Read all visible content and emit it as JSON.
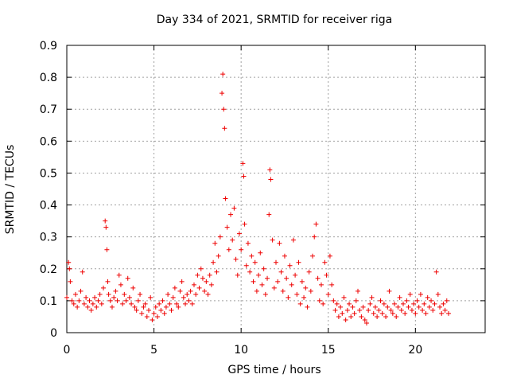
{
  "chart_data": {
    "type": "scatter",
    "title": "Day 334 of 2021, SRMTID for receiver riga",
    "xlabel": "GPS time / hours",
    "ylabel": "SRMTID / TECUs",
    "xlim": [
      0,
      24
    ],
    "ylim": [
      0,
      0.9
    ],
    "xticks": [
      0,
      5,
      10,
      15,
      20
    ],
    "yticks": [
      0,
      0.1,
      0.2,
      0.3,
      0.4,
      0.5,
      0.6,
      0.7,
      0.8,
      0.9
    ],
    "grid": true,
    "marker": "+",
    "color": "#ee0000",
    "series": [
      {
        "name": "riga",
        "points": [
          [
            0.0,
            0.11
          ],
          [
            0.1,
            0.22
          ],
          [
            0.15,
            0.2
          ],
          [
            0.2,
            0.16
          ],
          [
            0.3,
            0.1
          ],
          [
            0.4,
            0.09
          ],
          [
            0.5,
            0.12
          ],
          [
            0.6,
            0.08
          ],
          [
            0.7,
            0.1
          ],
          [
            0.8,
            0.13
          ],
          [
            0.9,
            0.19
          ],
          [
            1.0,
            0.09
          ],
          [
            1.1,
            0.11
          ],
          [
            1.2,
            0.08
          ],
          [
            1.3,
            0.1
          ],
          [
            1.4,
            0.07
          ],
          [
            1.5,
            0.09
          ],
          [
            1.6,
            0.11
          ],
          [
            1.7,
            0.08
          ],
          [
            1.8,
            0.1
          ],
          [
            1.9,
            0.12
          ],
          [
            2.0,
            0.09
          ],
          [
            2.1,
            0.14
          ],
          [
            2.2,
            0.35
          ],
          [
            2.25,
            0.33
          ],
          [
            2.3,
            0.26
          ],
          [
            2.35,
            0.16
          ],
          [
            2.4,
            0.12
          ],
          [
            2.5,
            0.1
          ],
          [
            2.6,
            0.08
          ],
          [
            2.7,
            0.11
          ],
          [
            2.8,
            0.13
          ],
          [
            2.9,
            0.1
          ],
          [
            3.0,
            0.18
          ],
          [
            3.1,
            0.15
          ],
          [
            3.2,
            0.09
          ],
          [
            3.3,
            0.12
          ],
          [
            3.4,
            0.1
          ],
          [
            3.5,
            0.17
          ],
          [
            3.6,
            0.11
          ],
          [
            3.7,
            0.09
          ],
          [
            3.8,
            0.14
          ],
          [
            3.9,
            0.08
          ],
          [
            4.0,
            0.07
          ],
          [
            4.1,
            0.1
          ],
          [
            4.2,
            0.12
          ],
          [
            4.3,
            0.06
          ],
          [
            4.4,
            0.08
          ],
          [
            4.5,
            0.09
          ],
          [
            4.6,
            0.05
          ],
          [
            4.7,
            0.07
          ],
          [
            4.8,
            0.11
          ],
          [
            4.9,
            0.04
          ],
          [
            5.0,
            0.06
          ],
          [
            5.1,
            0.08
          ],
          [
            5.2,
            0.05
          ],
          [
            5.3,
            0.09
          ],
          [
            5.4,
            0.07
          ],
          [
            5.5,
            0.1
          ],
          [
            5.6,
            0.06
          ],
          [
            5.7,
            0.08
          ],
          [
            5.8,
            0.12
          ],
          [
            5.9,
            0.09
          ],
          [
            6.0,
            0.07
          ],
          [
            6.1,
            0.11
          ],
          [
            6.2,
            0.14
          ],
          [
            6.3,
            0.09
          ],
          [
            6.4,
            0.08
          ],
          [
            6.5,
            0.13
          ],
          [
            6.6,
            0.16
          ],
          [
            6.7,
            0.11
          ],
          [
            6.8,
            0.09
          ],
          [
            6.9,
            0.12
          ],
          [
            7.0,
            0.1
          ],
          [
            7.1,
            0.13
          ],
          [
            7.2,
            0.09
          ],
          [
            7.3,
            0.15
          ],
          [
            7.4,
            0.12
          ],
          [
            7.5,
            0.18
          ],
          [
            7.6,
            0.14
          ],
          [
            7.7,
            0.2
          ],
          [
            7.8,
            0.17
          ],
          [
            7.9,
            0.13
          ],
          [
            8.0,
            0.16
          ],
          [
            8.1,
            0.12
          ],
          [
            8.2,
            0.18
          ],
          [
            8.3,
            0.15
          ],
          [
            8.4,
            0.22
          ],
          [
            8.5,
            0.28
          ],
          [
            8.6,
            0.19
          ],
          [
            8.7,
            0.24
          ],
          [
            8.8,
            0.3
          ],
          [
            8.9,
            0.75
          ],
          [
            8.95,
            0.81
          ],
          [
            9.0,
            0.7
          ],
          [
            9.05,
            0.64
          ],
          [
            9.1,
            0.42
          ],
          [
            9.2,
            0.33
          ],
          [
            9.3,
            0.26
          ],
          [
            9.4,
            0.37
          ],
          [
            9.5,
            0.29
          ],
          [
            9.6,
            0.39
          ],
          [
            9.7,
            0.23
          ],
          [
            9.8,
            0.18
          ],
          [
            9.9,
            0.31
          ],
          [
            10.0,
            0.26
          ],
          [
            10.1,
            0.53
          ],
          [
            10.15,
            0.49
          ],
          [
            10.2,
            0.34
          ],
          [
            10.3,
            0.21
          ],
          [
            10.4,
            0.28
          ],
          [
            10.5,
            0.19
          ],
          [
            10.6,
            0.24
          ],
          [
            10.7,
            0.16
          ],
          [
            10.8,
            0.22
          ],
          [
            10.9,
            0.13
          ],
          [
            11.0,
            0.18
          ],
          [
            11.1,
            0.25
          ],
          [
            11.2,
            0.15
          ],
          [
            11.3,
            0.2
          ],
          [
            11.4,
            0.12
          ],
          [
            11.5,
            0.17
          ],
          [
            11.6,
            0.37
          ],
          [
            11.65,
            0.51
          ],
          [
            11.7,
            0.48
          ],
          [
            11.8,
            0.29
          ],
          [
            11.9,
            0.14
          ],
          [
            12.0,
            0.22
          ],
          [
            12.1,
            0.16
          ],
          [
            12.2,
            0.28
          ],
          [
            12.3,
            0.19
          ],
          [
            12.4,
            0.13
          ],
          [
            12.5,
            0.24
          ],
          [
            12.6,
            0.17
          ],
          [
            12.7,
            0.11
          ],
          [
            12.8,
            0.21
          ],
          [
            12.9,
            0.15
          ],
          [
            13.0,
            0.29
          ],
          [
            13.1,
            0.18
          ],
          [
            13.2,
            0.12
          ],
          [
            13.3,
            0.22
          ],
          [
            13.4,
            0.09
          ],
          [
            13.5,
            0.16
          ],
          [
            13.6,
            0.11
          ],
          [
            13.7,
            0.14
          ],
          [
            13.8,
            0.08
          ],
          [
            13.9,
            0.19
          ],
          [
            14.0,
            0.13
          ],
          [
            14.1,
            0.24
          ],
          [
            14.2,
            0.3
          ],
          [
            14.3,
            0.34
          ],
          [
            14.4,
            0.17
          ],
          [
            14.5,
            0.1
          ],
          [
            14.6,
            0.15
          ],
          [
            14.7,
            0.09
          ],
          [
            14.8,
            0.22
          ],
          [
            14.9,
            0.18
          ],
          [
            15.0,
            0.12
          ],
          [
            15.1,
            0.24
          ],
          [
            15.2,
            0.15
          ],
          [
            15.3,
            0.1
          ],
          [
            15.4,
            0.07
          ],
          [
            15.5,
            0.09
          ],
          [
            15.6,
            0.05
          ],
          [
            15.7,
            0.08
          ],
          [
            15.8,
            0.06
          ],
          [
            15.9,
            0.11
          ],
          [
            16.0,
            0.04
          ],
          [
            16.1,
            0.07
          ],
          [
            16.2,
            0.09
          ],
          [
            16.3,
            0.05
          ],
          [
            16.4,
            0.08
          ],
          [
            16.5,
            0.06
          ],
          [
            16.6,
            0.1
          ],
          [
            16.7,
            0.13
          ],
          [
            16.8,
            0.07
          ],
          [
            16.9,
            0.05
          ],
          [
            17.0,
            0.08
          ],
          [
            17.1,
            0.04
          ],
          [
            17.2,
            0.03
          ],
          [
            17.3,
            0.07
          ],
          [
            17.4,
            0.09
          ],
          [
            17.5,
            0.11
          ],
          [
            17.6,
            0.06
          ],
          [
            17.7,
            0.08
          ],
          [
            17.8,
            0.05
          ],
          [
            17.9,
            0.07
          ],
          [
            18.0,
            0.1
          ],
          [
            18.1,
            0.06
          ],
          [
            18.2,
            0.09
          ],
          [
            18.3,
            0.05
          ],
          [
            18.4,
            0.08
          ],
          [
            18.5,
            0.13
          ],
          [
            18.6,
            0.07
          ],
          [
            18.7,
            0.06
          ],
          [
            18.8,
            0.09
          ],
          [
            18.9,
            0.05
          ],
          [
            19.0,
            0.08
          ],
          [
            19.1,
            0.11
          ],
          [
            19.2,
            0.07
          ],
          [
            19.3,
            0.09
          ],
          [
            19.4,
            0.06
          ],
          [
            19.5,
            0.1
          ],
          [
            19.6,
            0.08
          ],
          [
            19.7,
            0.12
          ],
          [
            19.8,
            0.07
          ],
          [
            19.9,
            0.09
          ],
          [
            20.0,
            0.06
          ],
          [
            20.1,
            0.1
          ],
          [
            20.2,
            0.08
          ],
          [
            20.3,
            0.12
          ],
          [
            20.4,
            0.07
          ],
          [
            20.5,
            0.09
          ],
          [
            20.6,
            0.06
          ],
          [
            20.7,
            0.11
          ],
          [
            20.8,
            0.08
          ],
          [
            20.9,
            0.1
          ],
          [
            21.0,
            0.07
          ],
          [
            21.1,
            0.09
          ],
          [
            21.2,
            0.19
          ],
          [
            21.3,
            0.12
          ],
          [
            21.4,
            0.08
          ],
          [
            21.5,
            0.06
          ],
          [
            21.6,
            0.09
          ],
          [
            21.7,
            0.07
          ],
          [
            21.8,
            0.1
          ],
          [
            21.9,
            0.06
          ]
        ]
      }
    ]
  }
}
